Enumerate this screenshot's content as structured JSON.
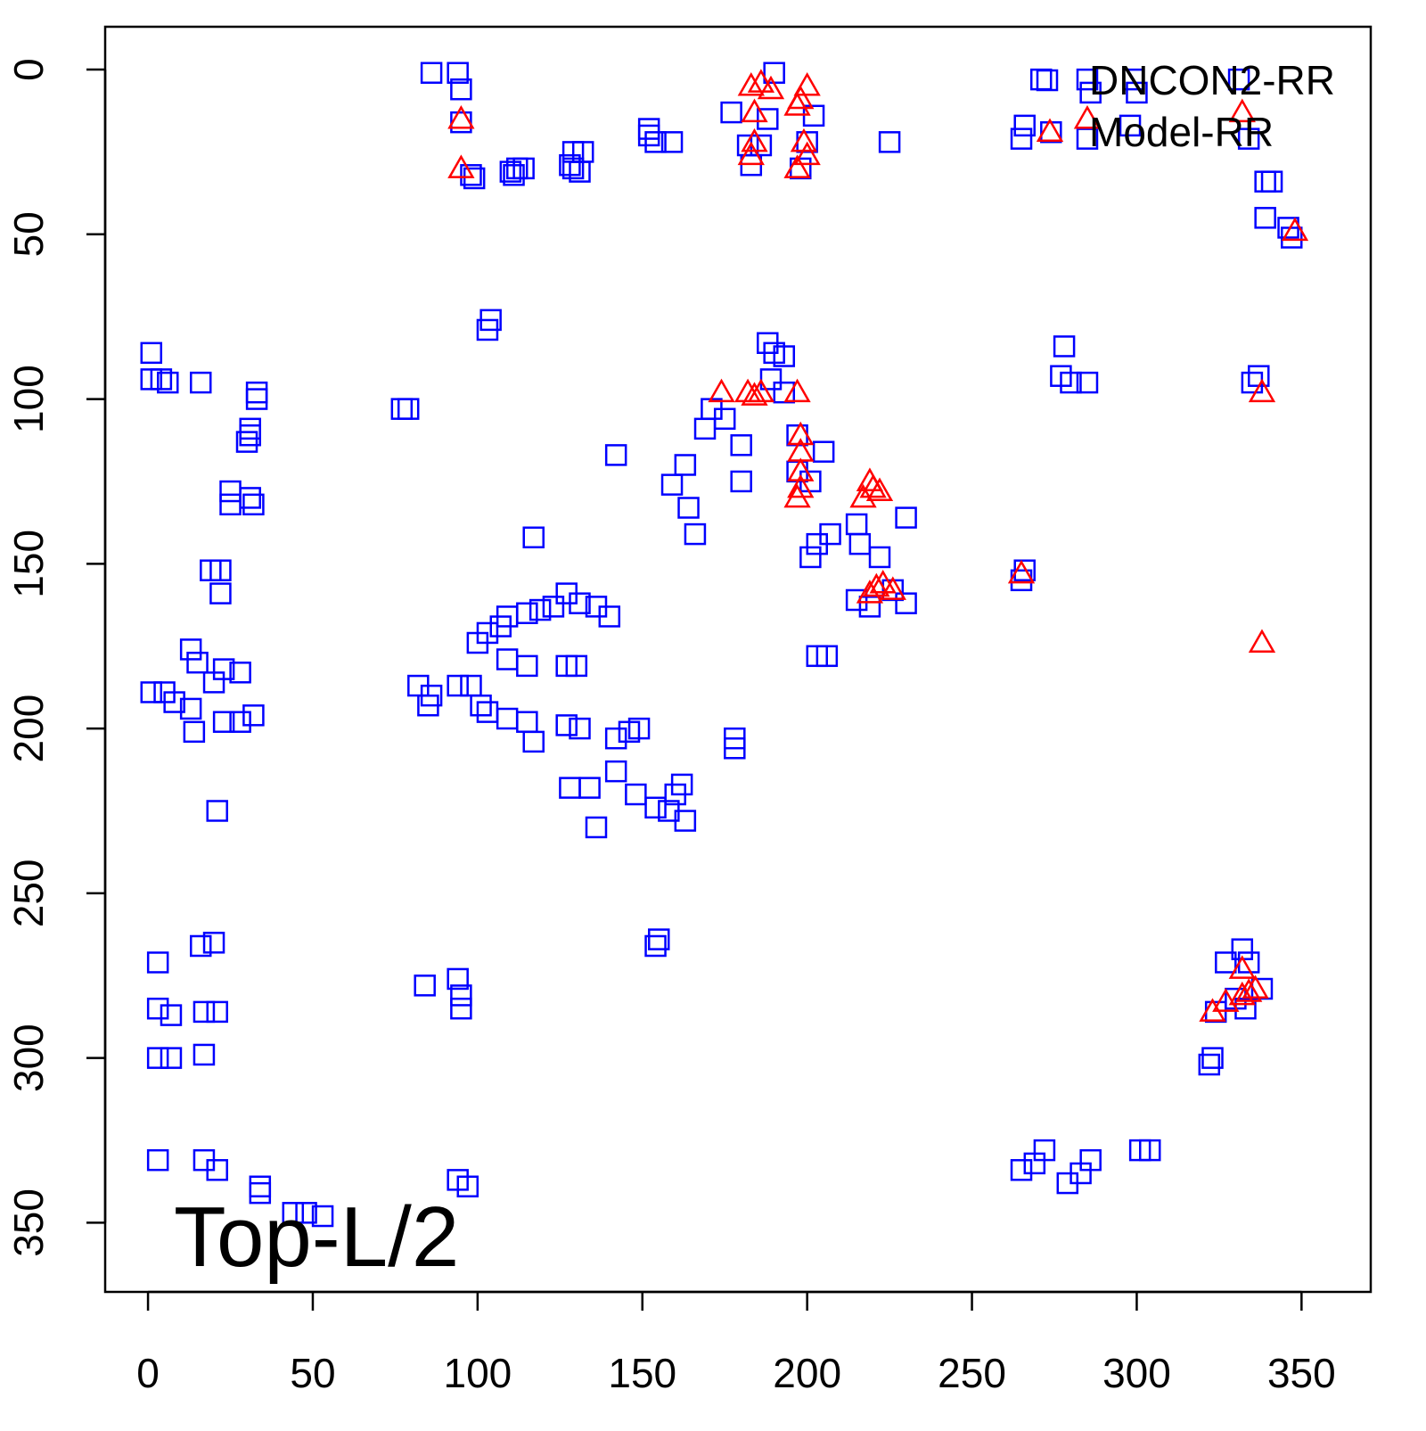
{
  "chart_data": {
    "type": "scatter",
    "title": "",
    "xlabel": "",
    "ylabel": "",
    "xlim": [
      -13,
      371
    ],
    "ylim": [
      -13,
      371
    ],
    "y_reversed": true,
    "grid": false,
    "x_ticks": [
      "0",
      "50",
      "100",
      "150",
      "200",
      "250",
      "300",
      "350"
    ],
    "y_ticks": [
      "0",
      "50",
      "100",
      "150",
      "200",
      "250",
      "300",
      "350"
    ],
    "annotation": "Top-L/2",
    "legend": {
      "placement": "top-right",
      "entries": [
        {
          "label": "DNCON2-RR",
          "marker": "square",
          "color": "#0000ff"
        },
        {
          "label": "Model-RR",
          "marker": "triangle",
          "color": "#ff0000"
        }
      ]
    },
    "series": [
      {
        "name": "DNCON2-RR",
        "marker": "square",
        "color": "#0000ff",
        "points": [
          [
            86,
            1
          ],
          [
            94,
            1
          ],
          [
            95,
            6
          ],
          [
            95,
            16
          ],
          [
            99,
            33
          ],
          [
            98,
            32
          ],
          [
            110,
            31
          ],
          [
            112,
            30
          ],
          [
            111,
            32
          ],
          [
            114,
            30
          ],
          [
            129,
            25
          ],
          [
            132,
            25
          ],
          [
            129,
            30
          ],
          [
            131,
            31
          ],
          [
            128,
            29
          ],
          [
            152,
            18
          ],
          [
            154,
            22
          ],
          [
            159,
            22
          ],
          [
            152,
            20
          ],
          [
            177,
            13
          ],
          [
            182,
            23
          ],
          [
            183,
            29
          ],
          [
            190,
            1
          ],
          [
            188,
            15
          ],
          [
            186,
            23
          ],
          [
            202,
            14
          ],
          [
            200,
            22
          ],
          [
            198,
            30
          ],
          [
            225,
            22
          ],
          [
            266,
            17
          ],
          [
            265,
            21
          ],
          [
            274,
            19
          ],
          [
            271,
            3
          ],
          [
            285,
            3
          ],
          [
            286,
            7
          ],
          [
            285,
            21
          ],
          [
            299,
            3
          ],
          [
            300,
            7
          ],
          [
            298,
            17
          ],
          [
            331,
            3
          ],
          [
            334,
            21
          ],
          [
            339,
            34
          ],
          [
            341,
            34
          ],
          [
            339,
            45
          ],
          [
            347,
            51
          ],
          [
            346,
            48
          ],
          [
            1,
            86
          ],
          [
            1,
            94
          ],
          [
            4,
            94
          ],
          [
            6,
            95
          ],
          [
            16,
            95
          ],
          [
            33,
            98
          ],
          [
            33,
            100
          ],
          [
            31,
            111
          ],
          [
            31,
            109
          ],
          [
            30,
            113
          ],
          [
            25,
            128
          ],
          [
            31,
            130
          ],
          [
            32,
            132
          ],
          [
            25,
            132
          ],
          [
            19,
            152
          ],
          [
            22,
            152
          ],
          [
            22,
            159
          ],
          [
            13,
            176
          ],
          [
            15,
            180
          ],
          [
            23,
            182
          ],
          [
            28,
            183
          ],
          [
            20,
            186
          ],
          [
            1,
            189
          ],
          [
            5,
            189
          ],
          [
            8,
            192
          ],
          [
            13,
            194
          ],
          [
            14,
            201
          ],
          [
            23,
            198
          ],
          [
            28,
            198
          ],
          [
            32,
            196
          ],
          [
            21,
            225
          ],
          [
            77,
            103
          ],
          [
            79,
            103
          ],
          [
            104,
            76
          ],
          [
            103,
            79
          ],
          [
            142,
            117
          ],
          [
            117,
            142
          ],
          [
            100,
            174
          ],
          [
            103,
            171
          ],
          [
            107,
            169
          ],
          [
            109,
            166
          ],
          [
            115,
            165
          ],
          [
            119,
            164
          ],
          [
            123,
            163
          ],
          [
            127,
            159
          ],
          [
            131,
            162
          ],
          [
            136,
            163
          ],
          [
            140,
            166
          ],
          [
            109,
            179
          ],
          [
            115,
            181
          ],
          [
            127,
            181
          ],
          [
            130,
            181
          ],
          [
            82,
            187
          ],
          [
            86,
            190
          ],
          [
            85,
            193
          ],
          [
            94,
            187
          ],
          [
            98,
            187
          ],
          [
            101,
            193
          ],
          [
            103,
            195
          ],
          [
            109,
            197
          ],
          [
            115,
            198
          ],
          [
            117,
            204
          ],
          [
            127,
            199
          ],
          [
            131,
            200
          ],
          [
            142,
            203
          ],
          [
            146,
            201
          ],
          [
            149,
            200
          ],
          [
            142,
            213
          ],
          [
            128,
            218
          ],
          [
            134,
            218
          ],
          [
            136,
            230
          ],
          [
            148,
            220
          ],
          [
            154,
            224
          ],
          [
            158,
            225
          ],
          [
            162,
            217
          ],
          [
            163,
            228
          ],
          [
            160,
            220
          ],
          [
            178,
            203
          ],
          [
            178,
            206
          ],
          [
            159,
            126
          ],
          [
            163,
            120
          ],
          [
            164,
            133
          ],
          [
            166,
            141
          ],
          [
            169,
            109
          ],
          [
            171,
            103
          ],
          [
            175,
            106
          ],
          [
            180,
            114
          ],
          [
            180,
            125
          ],
          [
            188,
            83
          ],
          [
            190,
            86
          ],
          [
            193,
            87
          ],
          [
            189,
            94
          ],
          [
            193,
            98
          ],
          [
            197,
            111
          ],
          [
            197,
            122
          ],
          [
            201,
            125
          ],
          [
            205,
            116
          ],
          [
            201,
            148
          ],
          [
            203,
            144
          ],
          [
            207,
            141
          ],
          [
            215,
            138
          ],
          [
            216,
            144
          ],
          [
            222,
            148
          ],
          [
            230,
            136
          ],
          [
            215,
            161
          ],
          [
            219,
            163
          ],
          [
            226,
            158
          ],
          [
            230,
            162
          ],
          [
            203,
            178
          ],
          [
            206,
            178
          ],
          [
            278,
            84
          ],
          [
            277,
            93
          ],
          [
            280,
            95
          ],
          [
            285,
            95
          ],
          [
            337,
            93
          ],
          [
            335,
            95
          ],
          [
            265,
            155
          ],
          [
            266,
            152
          ],
          [
            154,
            266
          ],
          [
            155,
            264
          ],
          [
            3,
            271
          ],
          [
            3,
            285
          ],
          [
            7,
            287
          ],
          [
            16,
            266
          ],
          [
            20,
            265
          ],
          [
            17,
            286
          ],
          [
            21,
            286
          ],
          [
            3,
            300
          ],
          [
            7,
            300
          ],
          [
            17,
            299
          ],
          [
            3,
            331
          ],
          [
            17,
            331
          ],
          [
            21,
            334
          ],
          [
            34,
            339
          ],
          [
            34,
            341
          ],
          [
            44,
            347
          ],
          [
            48,
            347
          ],
          [
            53,
            348
          ],
          [
            84,
            278
          ],
          [
            94,
            276
          ],
          [
            95,
            281
          ],
          [
            95,
            285
          ],
          [
            94,
            337
          ],
          [
            97,
            339
          ],
          [
            265,
            334
          ],
          [
            269,
            332
          ],
          [
            272,
            328
          ],
          [
            279,
            338
          ],
          [
            283,
            335
          ],
          [
            286,
            331
          ],
          [
            301,
            328
          ],
          [
            304,
            328
          ],
          [
            322,
            302
          ],
          [
            323,
            300
          ],
          [
            327,
            271
          ],
          [
            332,
            267
          ],
          [
            334,
            271
          ],
          [
            330,
            282
          ],
          [
            324,
            286
          ],
          [
            333,
            285
          ],
          [
            338,
            279
          ]
        ]
      },
      {
        "name": "Model-RR",
        "marker": "triangle",
        "color": "#ff0000",
        "points": [
          [
            95,
            15
          ],
          [
            95,
            30
          ],
          [
            183,
            5
          ],
          [
            186,
            4
          ],
          [
            189,
            6
          ],
          [
            184,
            13
          ],
          [
            184,
            22
          ],
          [
            183,
            26
          ],
          [
            197,
            11
          ],
          [
            200,
            5
          ],
          [
            198,
            9
          ],
          [
            199,
            22
          ],
          [
            197,
            30
          ],
          [
            200,
            26
          ],
          [
            285,
            15
          ],
          [
            332,
            13
          ],
          [
            348,
            49
          ],
          [
            174,
            98
          ],
          [
            182,
            98
          ],
          [
            184,
            99
          ],
          [
            186,
            98
          ],
          [
            197,
            98
          ],
          [
            198,
            111
          ],
          [
            198,
            116
          ],
          [
            198,
            122
          ],
          [
            197,
            130
          ],
          [
            198,
            127
          ],
          [
            219,
            125
          ],
          [
            217,
            130
          ],
          [
            222,
            128
          ],
          [
            220,
            127
          ],
          [
            219,
            159
          ],
          [
            223,
            156
          ],
          [
            226,
            158
          ],
          [
            221,
            157
          ],
          [
            265,
            153
          ],
          [
            338,
            174
          ],
          [
            338,
            98
          ],
          [
            332,
            273
          ],
          [
            323,
            286
          ],
          [
            327,
            283
          ],
          [
            332,
            281
          ],
          [
            336,
            279
          ],
          [
            334,
            280
          ]
        ]
      }
    ]
  }
}
